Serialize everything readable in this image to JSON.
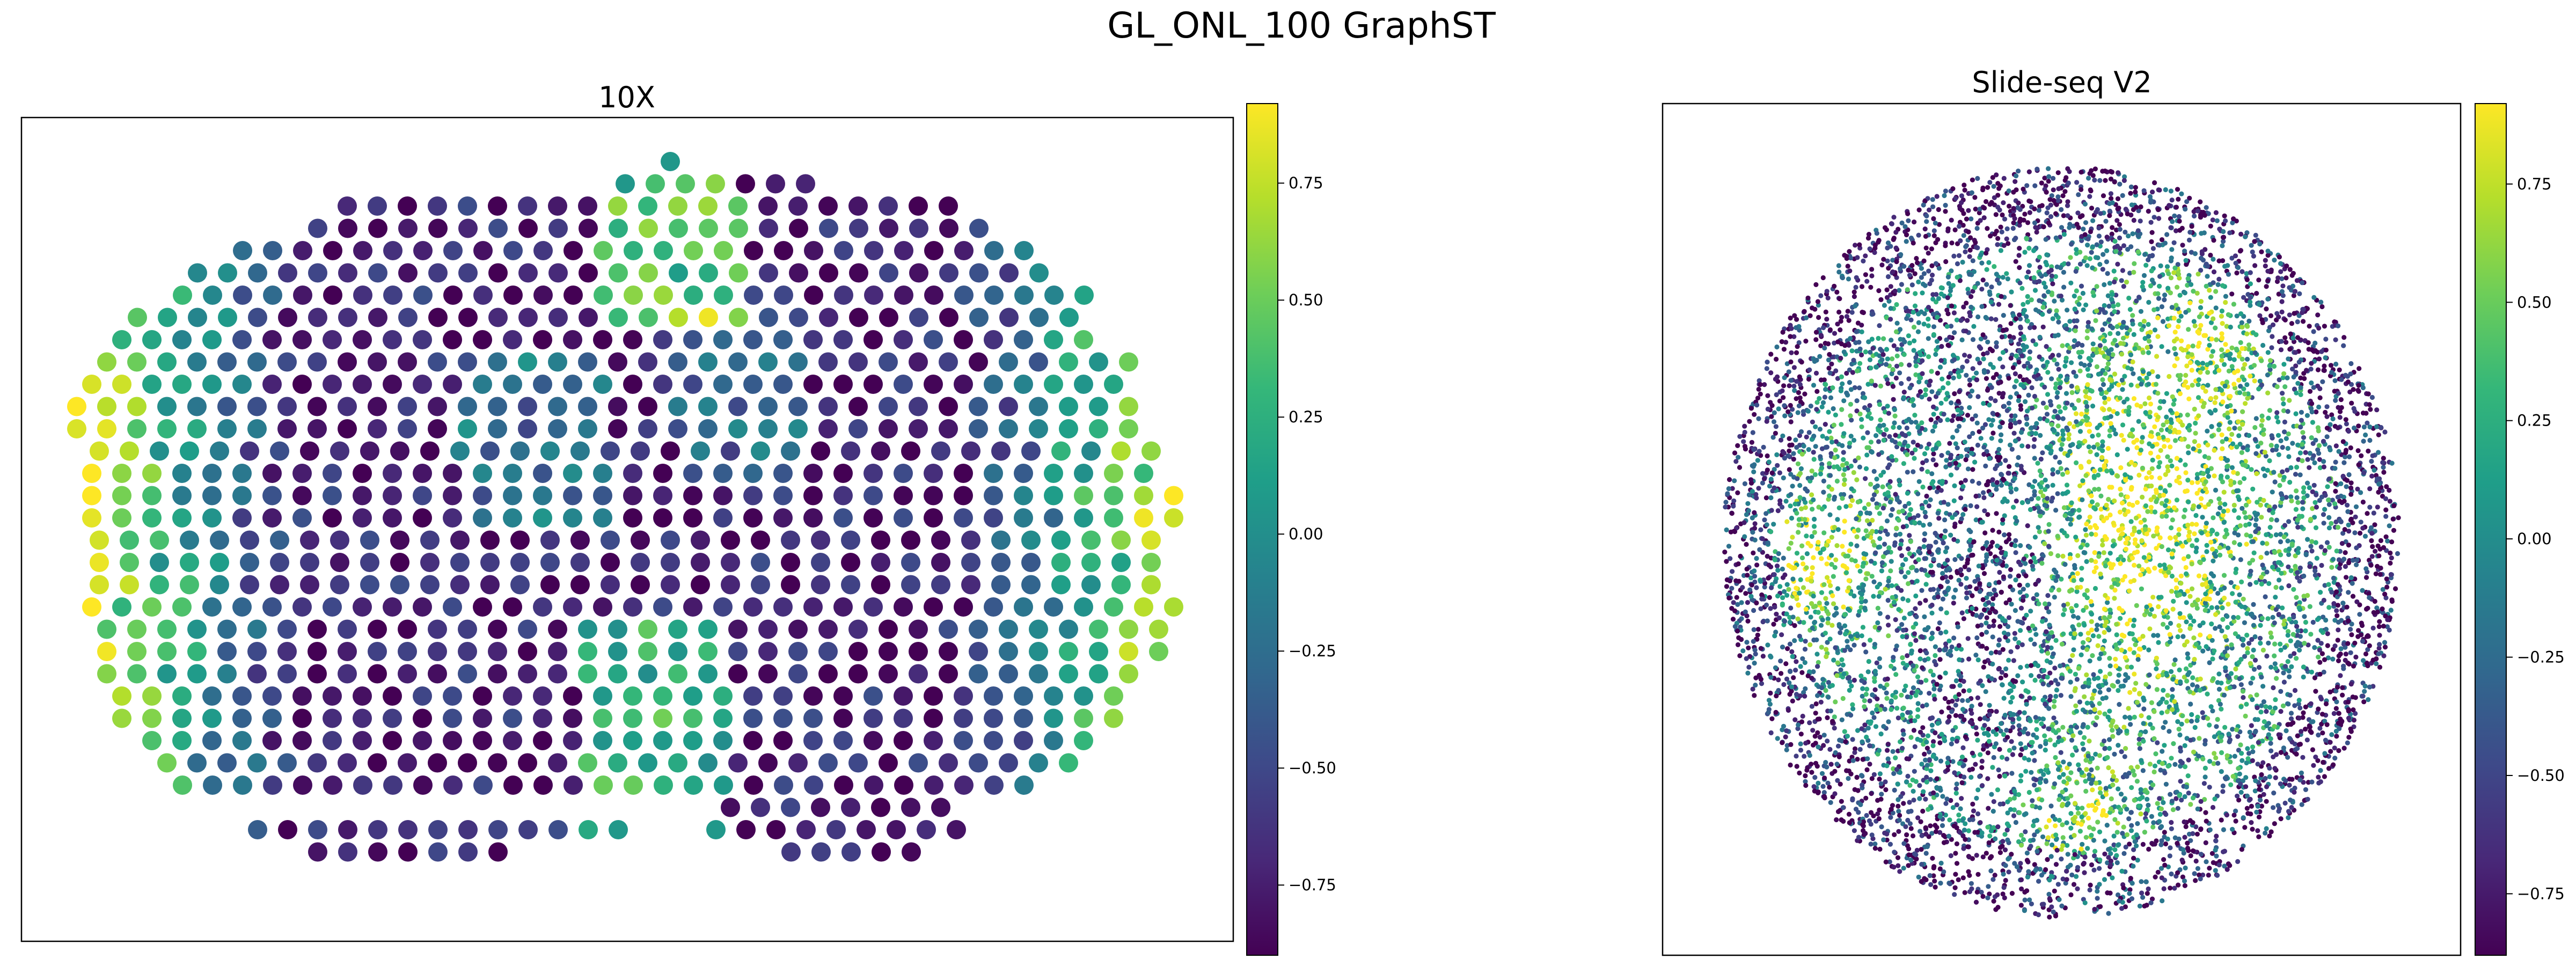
{
  "figure": {
    "title": "GL_ONL_100 GraphST"
  },
  "colormap": {
    "name": "viridis",
    "stops": [
      "#440154",
      "#482878",
      "#3e4989",
      "#31688e",
      "#26828e",
      "#1f9e89",
      "#35b779",
      "#6ece58",
      "#b5de2b",
      "#fde725"
    ]
  },
  "chart_data": [
    {
      "type": "scatter",
      "title": "10X",
      "xlabel": "",
      "ylabel": "",
      "grid": false,
      "value_range": [
        -0.9,
        0.92
      ],
      "colorbar": {
        "ticks": [
          0.75,
          0.5,
          0.25,
          0.0,
          -0.25,
          -0.5,
          -0.75
        ],
        "tick_labels": [
          "0.75",
          "0.50",
          "0.25",
          "0.00",
          "−0.25",
          "−0.50",
          "−0.75"
        ]
      }
    },
    {
      "type": "scatter",
      "title": "Slide-seq V2",
      "xlabel": "",
      "ylabel": "",
      "grid": false,
      "value_range": [
        -0.88,
        0.92
      ],
      "colorbar": {
        "ticks": [
          0.75,
          0.5,
          0.25,
          0.0,
          -0.25,
          -0.5,
          -0.75
        ],
        "tick_labels": [
          "0.75",
          "0.50",
          "0.25",
          "0.00",
          "−0.25",
          "−0.50",
          "−0.75"
        ]
      }
    }
  ]
}
